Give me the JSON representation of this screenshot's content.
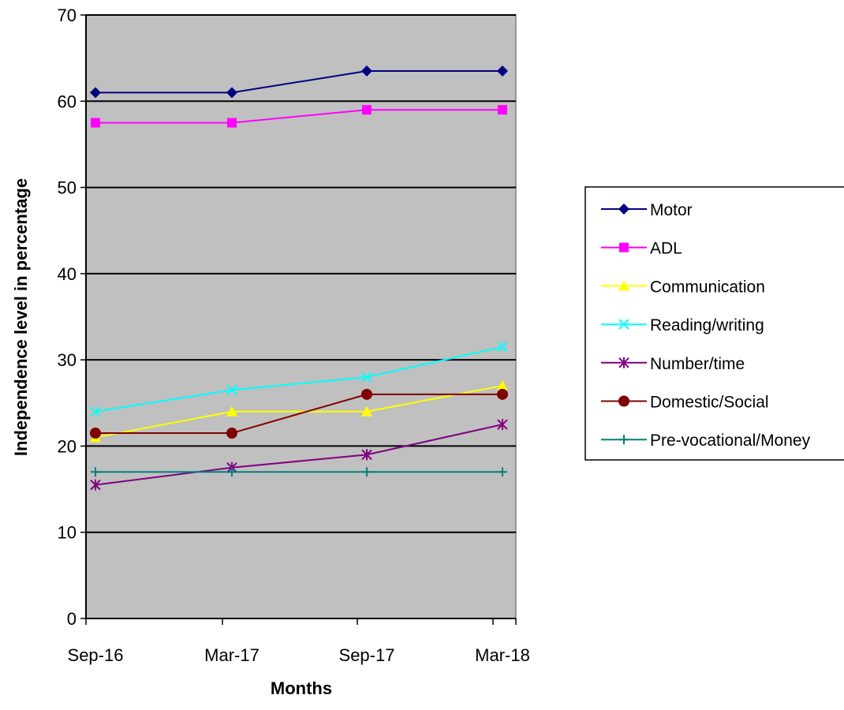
{
  "chart_data": {
    "type": "line",
    "xlabel": "Months",
    "ylabel": "Independence level in percentage",
    "categories": [
      "Sep-16",
      "Mar-17",
      "Sep-17",
      "Mar-18"
    ],
    "ylim": [
      0,
      70
    ],
    "yticks": [
      "0",
      "10",
      "20",
      "30",
      "40",
      "50",
      "60",
      "70"
    ],
    "grid": true,
    "plot_background": "#c0c0c0",
    "legend_position": "right",
    "series": [
      {
        "name": "Motor",
        "color": "#000080",
        "marker": "diamond",
        "values": [
          61,
          61,
          63.5,
          63.5
        ]
      },
      {
        "name": "ADL",
        "color": "#ff00ff",
        "marker": "square",
        "values": [
          57.5,
          57.5,
          59,
          59
        ]
      },
      {
        "name": "Communication",
        "color": "#ffff00",
        "marker": "triangle",
        "values": [
          21,
          24,
          24,
          27
        ]
      },
      {
        "name": "Reading/writing",
        "color": "#00ffff",
        "marker": "x",
        "values": [
          24,
          26.5,
          28,
          31.5
        ]
      },
      {
        "name": "Number/time",
        "color": "#800080",
        "marker": "star",
        "values": [
          15.5,
          17.5,
          19,
          22.5
        ]
      },
      {
        "name": "Domestic/Social",
        "color": "#800000",
        "marker": "circle",
        "values": [
          21.5,
          21.5,
          26,
          26
        ]
      },
      {
        "name": "Pre-vocational/Money",
        "color": "#008080",
        "marker": "plus",
        "values": [
          17,
          17,
          17,
          17
        ]
      }
    ]
  }
}
